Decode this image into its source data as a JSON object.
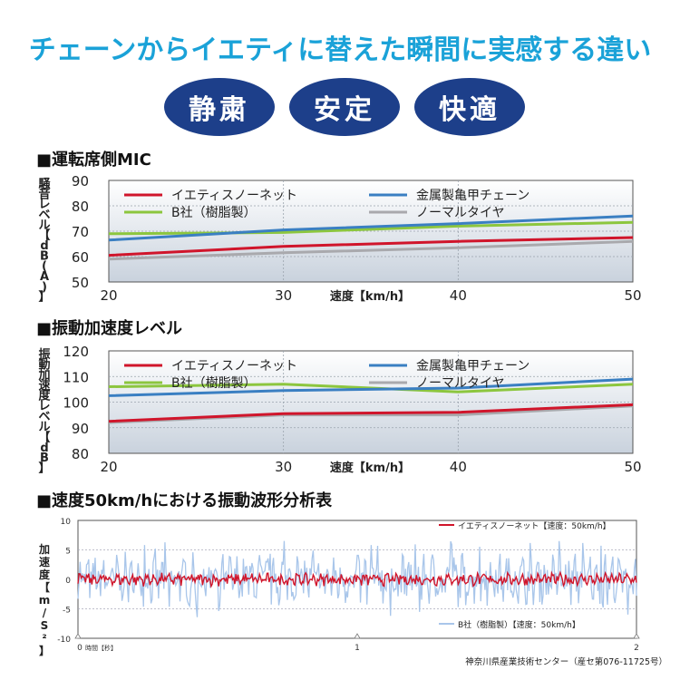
{
  "headline": "チェーンからイエティに替えた瞬間に実感する違い",
  "badges": [
    "静粛",
    "安定",
    "快適"
  ],
  "colors": {
    "yeti": "#d0152b",
    "metal": "#3a7fc2",
    "b": "#8cc63e",
    "normal": "#a9a9ad",
    "navy": "#1d3f8a",
    "headline": "#1aa2d8"
  },
  "chart_data": [
    {
      "type": "line",
      "title": "■運転席側MIC",
      "ylabel": "騒音レベル【dB(A)】",
      "xlabel": "速度【km/h】",
      "x": [
        20,
        30,
        40,
        50
      ],
      "xlim": [
        20,
        50
      ],
      "ylim": [
        50,
        90
      ],
      "yticks": [
        90,
        80,
        70,
        60,
        50
      ],
      "xticks": [
        20,
        30,
        40,
        50
      ],
      "series": [
        {
          "name": "イエティスノーネット",
          "color": "#d0152b",
          "values": [
            60.5,
            64,
            66,
            67.5
          ]
        },
        {
          "name": "金属製亀甲チェーン",
          "color": "#3a7fc2",
          "values": [
            66.5,
            70.5,
            73,
            76
          ]
        },
        {
          "name": "B社（樹脂製）",
          "color": "#8cc63e",
          "values": [
            69,
            69.5,
            72,
            73.5
          ]
        },
        {
          "name": "ノーマルタイヤ",
          "color": "#a9a9ad",
          "values": [
            59,
            61.5,
            63.5,
            66
          ]
        }
      ]
    },
    {
      "type": "line",
      "title": "■振動加速度レベル",
      "ylabel": "振動加速度レベル【dB】",
      "xlabel": "速度【km/h】",
      "x": [
        20,
        30,
        40,
        50
      ],
      "xlim": [
        20,
        50
      ],
      "ylim": [
        80,
        120
      ],
      "yticks": [
        120,
        110,
        100,
        90,
        80
      ],
      "xticks": [
        20,
        30,
        40,
        50
      ],
      "series": [
        {
          "name": "イエティスノーネット",
          "color": "#d0152b",
          "values": [
            92.5,
            95.5,
            96,
            99
          ]
        },
        {
          "name": "金属製亀甲チェーン",
          "color": "#3a7fc2",
          "values": [
            102.5,
            104.5,
            105.5,
            109
          ]
        },
        {
          "name": "B社（樹脂製）",
          "color": "#8cc63e",
          "values": [
            106,
            107,
            104,
            107
          ]
        },
        {
          "name": "ノーマルタイヤ",
          "color": "#a9a9ad",
          "values": [
            92,
            95,
            95,
            98.5
          ]
        }
      ]
    },
    {
      "type": "line",
      "title": "■速度50km/hにおける振動波形分析表",
      "ylabel": "加速度【m/S²】",
      "xlabel": "時間【秒】",
      "xlim": [
        0,
        2
      ],
      "ylim": [
        -10,
        10
      ],
      "yticks": [
        10,
        5,
        0,
        -5,
        -10
      ],
      "xticks": [
        0,
        1,
        2
      ],
      "series": [
        {
          "name": "イエティスノーネット【速度：50km/h】",
          "color": "#d0152b",
          "amplitude": 1.5
        },
        {
          "name": "B社（樹脂製）【速度：50km/h】",
          "color": "#a9c6ea",
          "amplitude": 6
        }
      ]
    }
  ],
  "footer": "神奈川県産業技術センター（産セ第076-11725号）"
}
